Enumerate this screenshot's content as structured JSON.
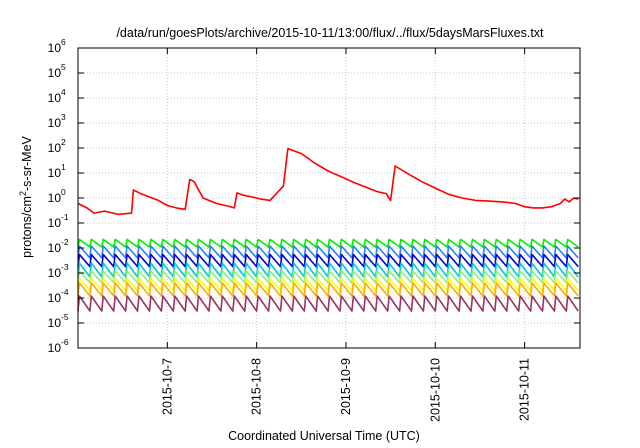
{
  "chart_data": {
    "type": "line",
    "title": "/data/run/goesPlots/archive/2015-10-11/13:00/flux/../flux/5daysMarsFluxes.txt",
    "xlabel": "Coordinated Universal Time (UTC)",
    "ylabel": {
      "base": "protons/cm",
      "sup": "2",
      "rest": "-s-sr-MeV"
    },
    "yscale": "log",
    "ylim": [
      1e-06,
      1000000.0
    ],
    "y_ticks": [
      {
        "value": 1e-06,
        "base": "10",
        "exp": "-6"
      },
      {
        "value": 1e-05,
        "base": "10",
        "exp": "-5"
      },
      {
        "value": 0.0001,
        "base": "10",
        "exp": "-4"
      },
      {
        "value": 0.001,
        "base": "10",
        "exp": "-3"
      },
      {
        "value": 0.01,
        "base": "10",
        "exp": "-2"
      },
      {
        "value": 0.1,
        "base": "10",
        "exp": "-1"
      },
      {
        "value": 1,
        "base": "10",
        "exp": "0"
      },
      {
        "value": 10,
        "base": "10",
        "exp": "1"
      },
      {
        "value": 100,
        "base": "10",
        "exp": "2"
      },
      {
        "value": 1000,
        "base": "10",
        "exp": "3"
      },
      {
        "value": 10000,
        "base": "10",
        "exp": "4"
      },
      {
        "value": 100000,
        "base": "10",
        "exp": "5"
      },
      {
        "value": 1000000,
        "base": "10",
        "exp": "6"
      }
    ],
    "xlim": [
      0,
      5.62
    ],
    "x_ticks": [
      {
        "value": 1,
        "label": "2015-10-7"
      },
      {
        "value": 2,
        "label": "2015-10-8"
      },
      {
        "value": 3,
        "label": "2015-10-9"
      },
      {
        "value": 4,
        "label": "2015-10-10"
      },
      {
        "value": 5,
        "label": "2015-10-11"
      }
    ],
    "grid": true,
    "series": [
      {
        "color": "#ff0000",
        "x": [
          0,
          0.1,
          0.18,
          0.3,
          0.45,
          0.6,
          0.62,
          0.7,
          0.8,
          0.9,
          1.0,
          1.1,
          1.2,
          1.25,
          1.3,
          1.4,
          1.55,
          1.65,
          1.75,
          1.78,
          1.85,
          1.95,
          2.05,
          2.15,
          2.3,
          2.35,
          2.5,
          2.65,
          2.8,
          2.95,
          3.1,
          3.25,
          3.35,
          3.45,
          3.5,
          3.55,
          3.7,
          3.85,
          4.0,
          4.15,
          4.3,
          4.45,
          4.6,
          4.75,
          4.9,
          5.0,
          5.1,
          5.2,
          5.3,
          5.4,
          5.45,
          5.5,
          5.55,
          5.6
        ],
        "values": [
          0.6,
          0.4,
          0.25,
          0.3,
          0.22,
          0.25,
          2.1,
          1.5,
          1.1,
          0.8,
          0.5,
          0.4,
          0.35,
          5.5,
          4.5,
          1.0,
          0.6,
          0.5,
          0.4,
          1.6,
          1.3,
          1.1,
          0.9,
          0.8,
          3.0,
          95,
          60,
          25,
          12,
          7,
          4,
          2.5,
          1.8,
          1.5,
          0.8,
          19,
          9,
          4.5,
          2.5,
          1.4,
          1.0,
          0.8,
          0.75,
          0.7,
          0.6,
          0.45,
          0.4,
          0.4,
          0.45,
          0.6,
          0.9,
          0.7,
          1.0,
          0.9
        ]
      },
      {
        "color": "#00ee00",
        "x_range": [
          0,
          5.6
        ],
        "periods": 42,
        "peak": 0.022,
        "trough": 0.011
      },
      {
        "color": "#2a7fff",
        "x_range": [
          0,
          5.6
        ],
        "periods": 42,
        "peak": 0.012,
        "trough": 0.004
      },
      {
        "color": "#0000cc",
        "x_range": [
          0,
          5.6
        ],
        "periods": 42,
        "peak": 0.0055,
        "trough": 0.0018
      },
      {
        "color": "#00cccc",
        "x_range": [
          0,
          5.6
        ],
        "periods": 42,
        "peak": 0.0025,
        "trough": 0.0007
      },
      {
        "color": "#88ee88",
        "x_range": [
          0,
          5.6
        ],
        "periods": 42,
        "peak": 0.0012,
        "trough": 0.0004
      },
      {
        "color": "#ffff00",
        "x_range": [
          0,
          5.6
        ],
        "periods": 42,
        "peak": 0.0006,
        "trough": 0.0002
      },
      {
        "color": "#ffaa00",
        "x_range": [
          0,
          5.6
        ],
        "periods": 42,
        "peak": 0.0004,
        "trough": 0.00012
      },
      {
        "color": "#993366",
        "x_range": [
          0,
          5.6
        ],
        "periods": 42,
        "peak": 0.00012,
        "trough": 3e-05
      }
    ]
  }
}
